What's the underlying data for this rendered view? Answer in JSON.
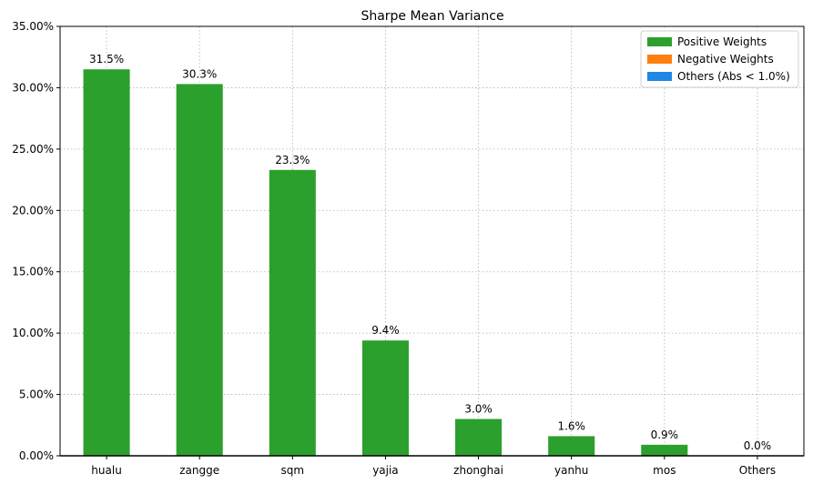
{
  "chart_data": {
    "type": "bar",
    "title": "Sharpe Mean Variance",
    "xlabel": "",
    "ylabel": "",
    "categories": [
      "hualu",
      "zangge",
      "sqm",
      "yajia",
      "zhonghai",
      "yanhu",
      "mos",
      "Others"
    ],
    "values": [
      31.5,
      30.3,
      23.3,
      9.4,
      3.0,
      1.6,
      0.9,
      0.0
    ],
    "data_labels": [
      "31.5%",
      "30.3%",
      "23.3%",
      "9.4%",
      "3.0%",
      "1.6%",
      "0.9%",
      "0.0%"
    ],
    "ylim": [
      0,
      35
    ],
    "yticks": [
      0,
      5,
      10,
      15,
      20,
      25,
      30,
      35
    ],
    "ytick_labels": [
      "0.00%",
      "5.00%",
      "10.00%",
      "15.00%",
      "20.00%",
      "25.00%",
      "30.00%",
      "35.00%"
    ],
    "grid": true,
    "legend_position": "top-right",
    "legend": [
      {
        "label": "Positive Weights",
        "color": "#2ca02c"
      },
      {
        "label": "Negative Weights",
        "color": "#ff7f0e"
      },
      {
        "label": "Others (Abs < 1.0%)",
        "color": "#1e88e5"
      }
    ],
    "bar_color": "#2ca02c"
  }
}
